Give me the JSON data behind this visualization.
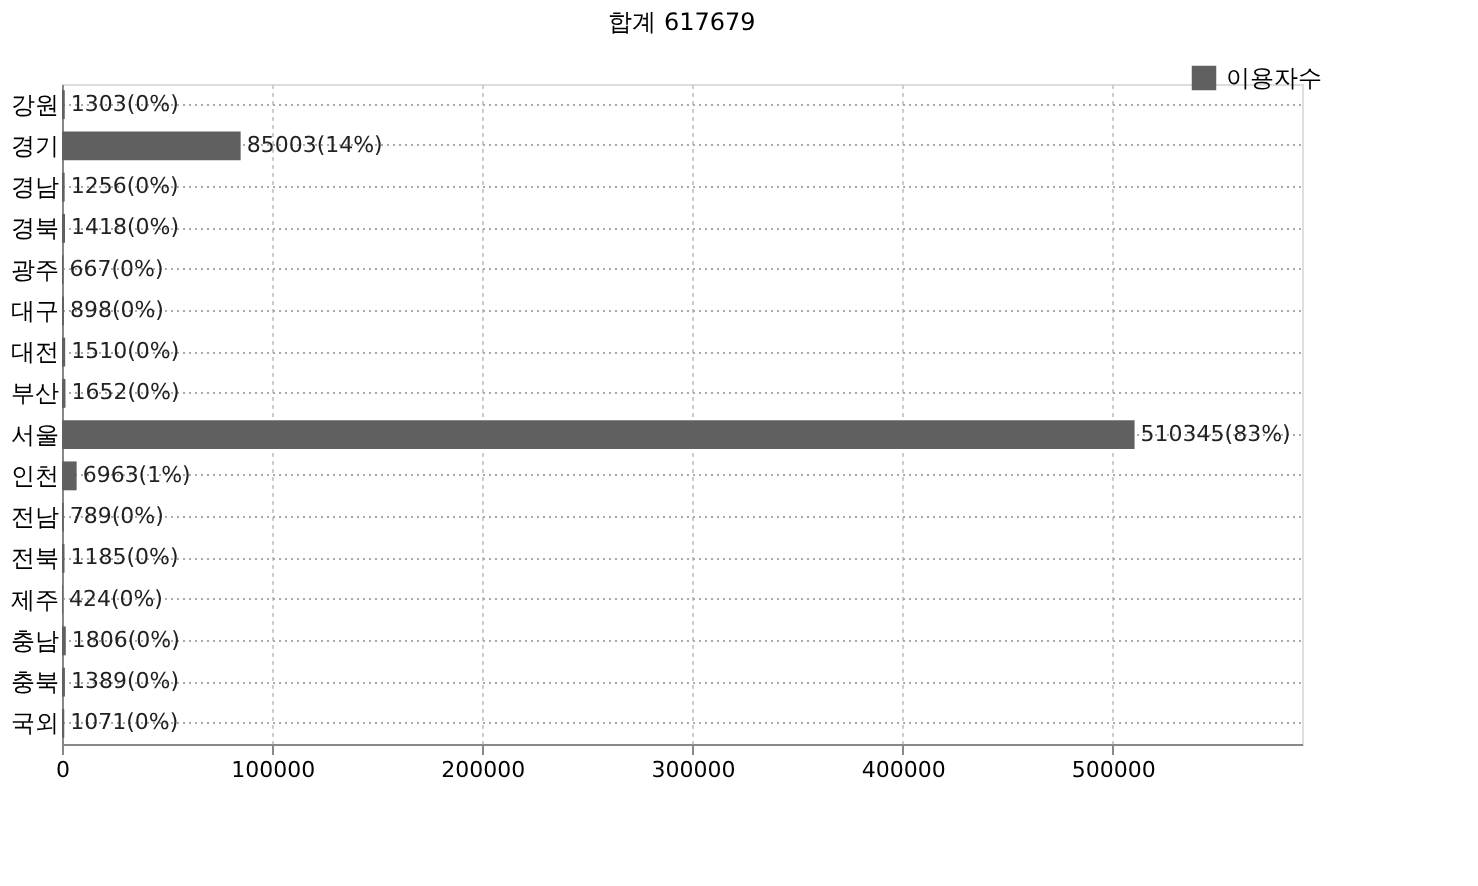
{
  "chart_data": {
    "type": "bar",
    "orientation": "horizontal",
    "title": "합계 617679",
    "categories": [
      "강원",
      "경기",
      "경남",
      "경북",
      "광주",
      "대구",
      "대전",
      "부산",
      "서울",
      "인천",
      "전남",
      "전북",
      "제주",
      "충남",
      "충북",
      "국외"
    ],
    "series": [
      {
        "name": "이용자수",
        "color": "#606060",
        "values": [
          1303,
          85003,
          1256,
          1418,
          667,
          898,
          1510,
          1652,
          510345,
          6963,
          789,
          1185,
          424,
          1806,
          1389,
          1071
        ],
        "value_labels": [
          "1303(0%)",
          "85003(14%)",
          "1256(0%)",
          "1418(0%)",
          "667(0%)",
          "898(0%)",
          "1510(0%)",
          "1652(0%)",
          "510345(83%)",
          "6963(1%)",
          "789(0%)",
          "1185(0%)",
          "424(0%)",
          "1806(0%)",
          "1389(0%)",
          "1071(0%)"
        ]
      }
    ],
    "xlim": [
      0,
      590000
    ],
    "xticks": [
      0,
      100000,
      200000,
      300000,
      400000,
      500000
    ],
    "grid": true,
    "legend": "top right"
  }
}
